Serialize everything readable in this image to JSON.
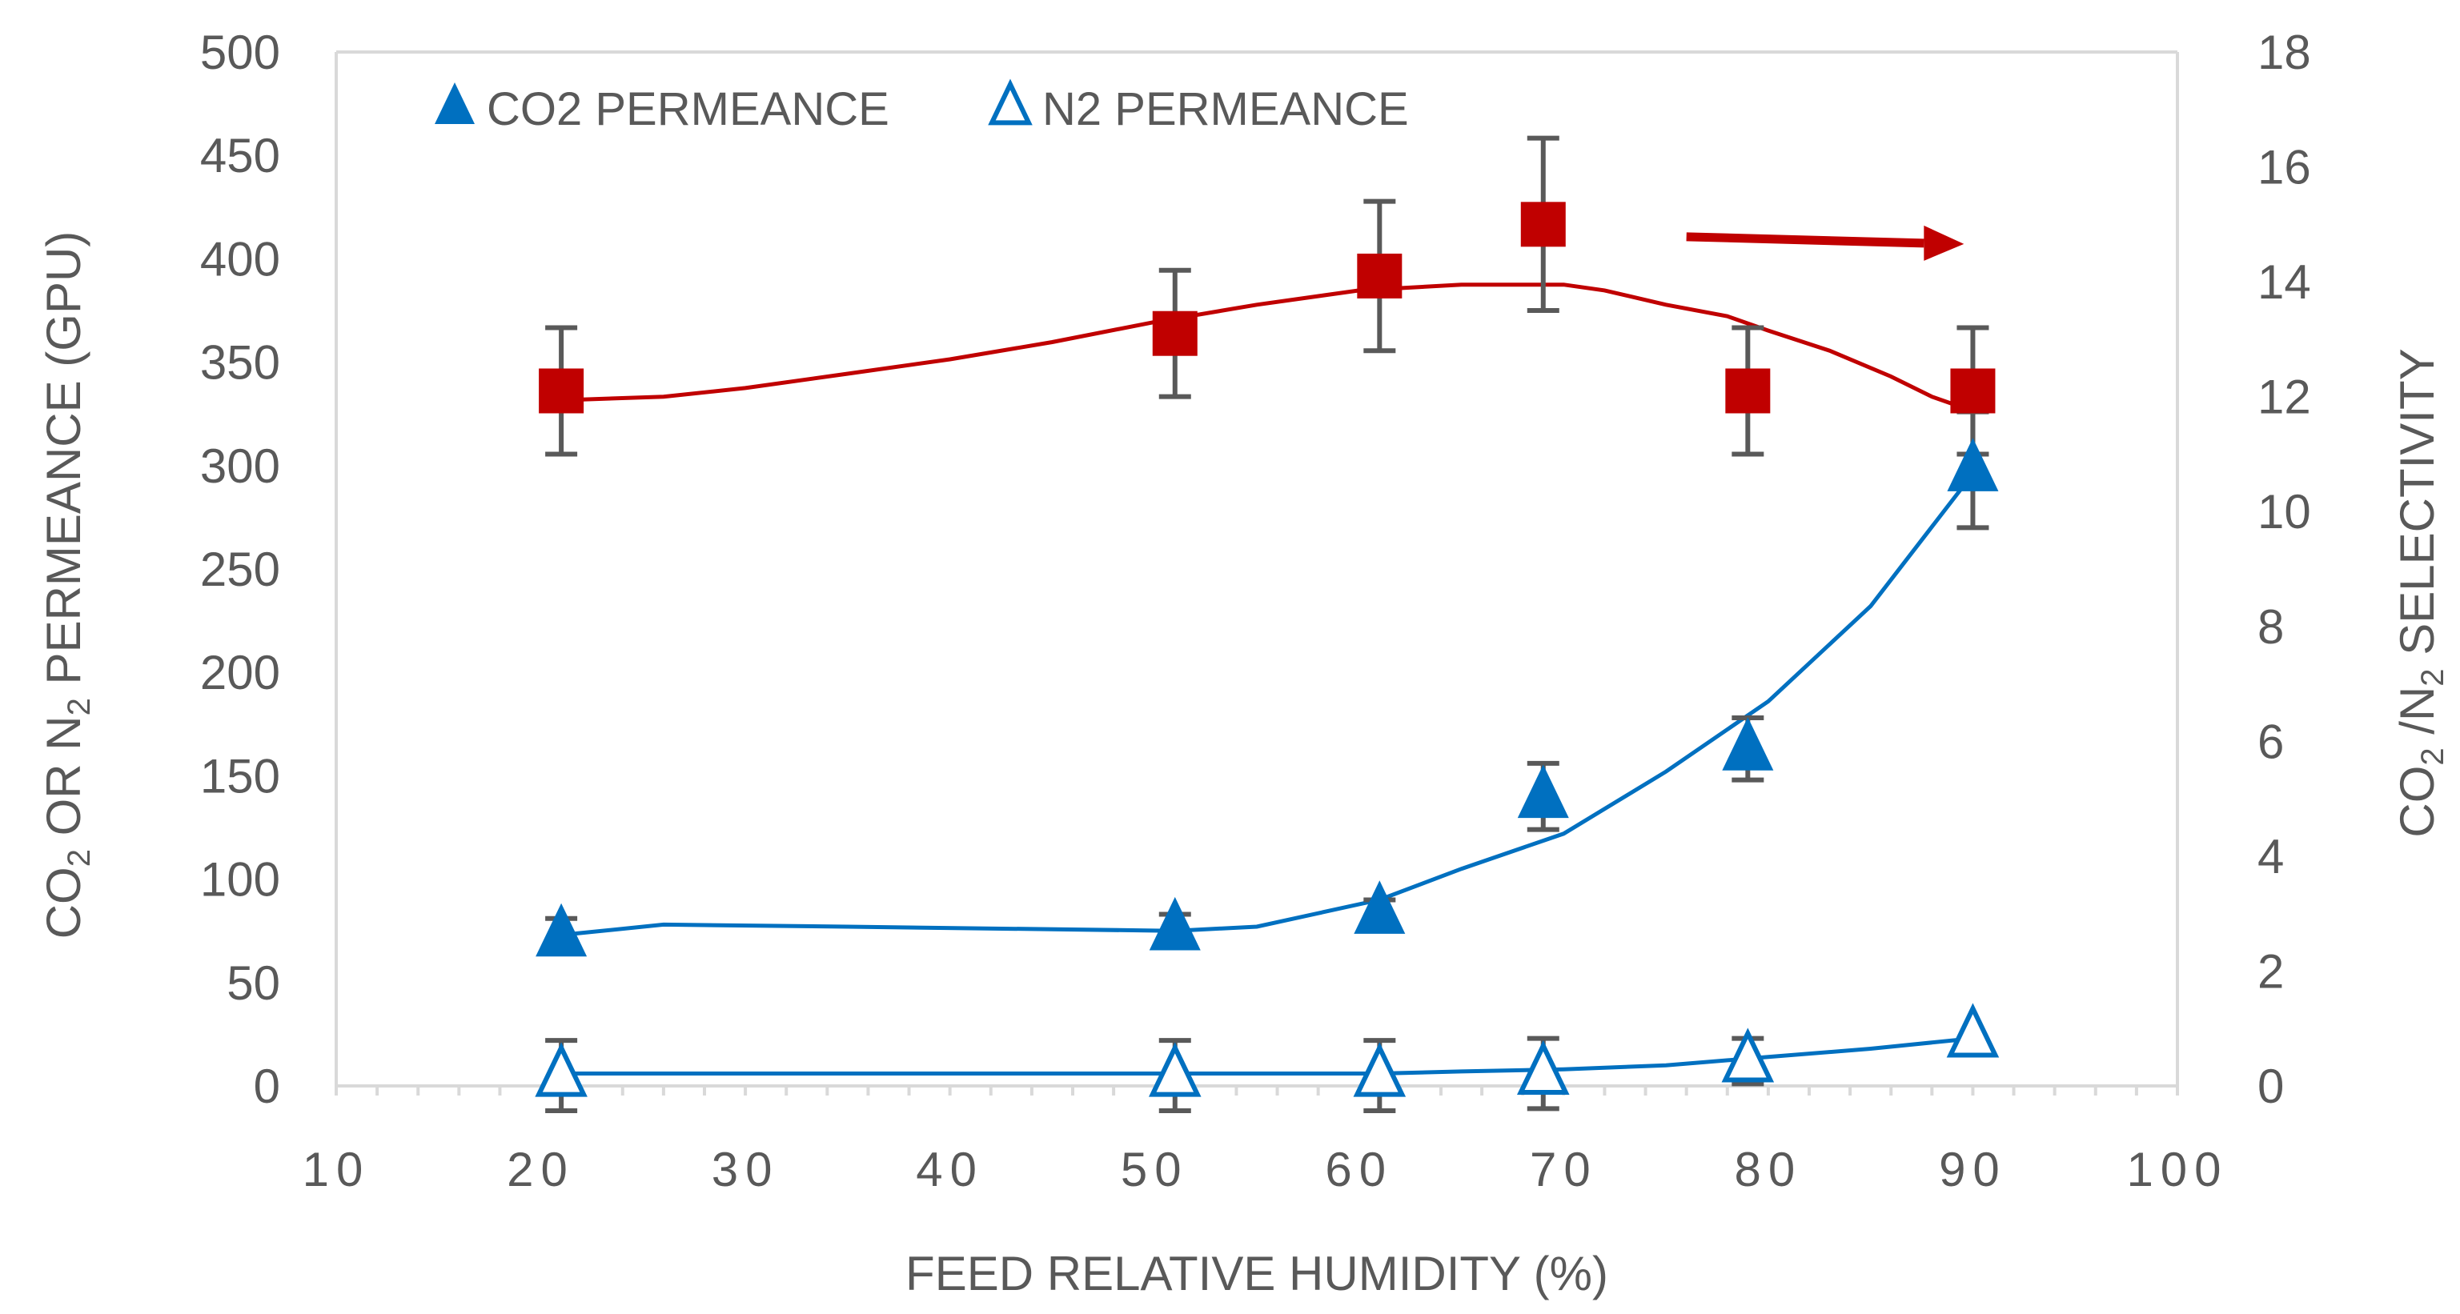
{
  "chart_data": {
    "type": "scatter",
    "xlabel": "FEED RELATIVE HUMIDITY (%)",
    "ylabel": {
      "parts": [
        "CO",
        "2",
        " OR N",
        "2",
        "  PERMEANCE (GPU)"
      ]
    },
    "y2label": {
      "parts": [
        "CO",
        "2",
        " /N",
        "2",
        " SELECTIVITY"
      ]
    },
    "xlim": [
      10,
      100
    ],
    "ylim": [
      0,
      500
    ],
    "y2lim": [
      0,
      18
    ],
    "x_ticks": [
      10,
      20,
      30,
      40,
      50,
      60,
      70,
      80,
      90,
      100
    ],
    "y_ticks": [
      0,
      50,
      100,
      150,
      200,
      250,
      300,
      350,
      400,
      450,
      500
    ],
    "y2_ticks": [
      0,
      2,
      4,
      6,
      8,
      10,
      12,
      14,
      16,
      18
    ],
    "grid": false,
    "legend": {
      "placement": "top-left"
    },
    "colors": {
      "co2": "#0070c0",
      "n2": "#0070c0",
      "selectivity": "#c00000",
      "error_bar": "#595959",
      "axis": "#d9d9d9"
    },
    "series": [
      {
        "name": "CO2 PERMEANCE",
        "axis": "left",
        "marker": "filled-triangle",
        "x": [
          21,
          51,
          61,
          69,
          79,
          90
        ],
        "y": [
          73,
          76,
          84,
          140,
          163,
          298
        ],
        "err": [
          8,
          7,
          6,
          16,
          15,
          28
        ],
        "trend_x": [
          21,
          26,
          35,
          51,
          55,
          61,
          65,
          70,
          75,
          80,
          85,
          90
        ],
        "trend_y": [
          73,
          78,
          77,
          75,
          77,
          90,
          105,
          122,
          152,
          186,
          232,
          296
        ]
      },
      {
        "name": "N2 PERMEANCE",
        "axis": "left",
        "marker": "open-triangle",
        "x": [
          21,
          51,
          61,
          69,
          79,
          90
        ],
        "y": [
          5,
          5,
          5,
          6,
          12,
          24
        ],
        "err": [
          17,
          17,
          17,
          17,
          11,
          0
        ],
        "trend_x": [
          21,
          51,
          61,
          65,
          70,
          75,
          80,
          85,
          90
        ],
        "trend_y": [
          6,
          6,
          6,
          7,
          8,
          10,
          14,
          18,
          23
        ]
      },
      {
        "axis": "right",
        "marker": "filled-square",
        "x": [
          21,
          51,
          61,
          69,
          79,
          90
        ],
        "y": [
          12.1,
          13.1,
          14.1,
          15.0,
          12.1,
          12.1
        ],
        "err": [
          1.1,
          1.1,
          1.3,
          1.5,
          1.1,
          1.1
        ],
        "trend_x": [
          22,
          26,
          30,
          35,
          40,
          45,
          50,
          55,
          60,
          65,
          70,
          72,
          75,
          78,
          80,
          83,
          86,
          88,
          90
        ],
        "trend_y": [
          11.95,
          12.0,
          12.15,
          12.4,
          12.65,
          12.95,
          13.3,
          13.6,
          13.85,
          13.95,
          13.95,
          13.85,
          13.6,
          13.4,
          13.15,
          12.8,
          12.35,
          12.0,
          11.75
        ]
      }
    ],
    "annotations": [
      {
        "kind": "arrow",
        "points_to": "right-axis",
        "x_from": 76,
        "x_to": 88,
        "y2": 14.7,
        "color": "#c00000"
      }
    ]
  }
}
